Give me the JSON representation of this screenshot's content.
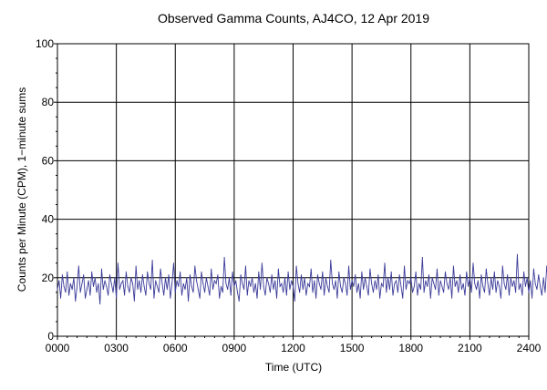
{
  "chart_data": {
    "type": "line",
    "title": "Observed Gamma Counts, AJ4CO, 12 Apr 2019",
    "xlabel": "Time (UTC)",
    "ylabel": "Counts per Minute (CPM), 1−minute sums",
    "x_unit": "minutes of day (UTC)",
    "xlim": [
      0,
      1440
    ],
    "ylim": [
      0,
      100
    ],
    "x_ticks": [
      {
        "value": 0,
        "label": "0000"
      },
      {
        "value": 180,
        "label": "0300"
      },
      {
        "value": 360,
        "label": "0600"
      },
      {
        "value": 540,
        "label": "0900"
      },
      {
        "value": 720,
        "label": "1200"
      },
      {
        "value": 900,
        "label": "1500"
      },
      {
        "value": 1080,
        "label": "1800"
      },
      {
        "value": 1260,
        "label": "2100"
      },
      {
        "value": 1440,
        "label": "2400"
      }
    ],
    "y_ticks": [
      {
        "value": 0,
        "label": "0"
      },
      {
        "value": 20,
        "label": "20"
      },
      {
        "value": 40,
        "label": "40"
      },
      {
        "value": 60,
        "label": "60"
      },
      {
        "value": 80,
        "label": "80"
      },
      {
        "value": 100,
        "label": "100"
      }
    ],
    "grid": true,
    "line_color": "#3b3b9a",
    "series": [
      {
        "name": "",
        "x_start": 0,
        "x_step": 5,
        "values": [
          16,
          19,
          13,
          21,
          17,
          15,
          22,
          14,
          18,
          16,
          20,
          12,
          17,
          24,
          15,
          18,
          21,
          13,
          16,
          19,
          14,
          22,
          17,
          20,
          15,
          18,
          11,
          23,
          16,
          19,
          17,
          14,
          21,
          18,
          15,
          20,
          13,
          25,
          16,
          18,
          19,
          14,
          22,
          17,
          15,
          20,
          18,
          12,
          24,
          16,
          19,
          15,
          21,
          17,
          14,
          22,
          18,
          16,
          26,
          13,
          19,
          17,
          15,
          23,
          18,
          14,
          20,
          16,
          21,
          13,
          18,
          25,
          15,
          19,
          17,
          22,
          14,
          18,
          16,
          20,
          12,
          21,
          17,
          15,
          24,
          19,
          16,
          13,
          22,
          18,
          15,
          20,
          17,
          14,
          23,
          16,
          19,
          18,
          21,
          13,
          17,
          15,
          27,
          18,
          16,
          20,
          14,
          22,
          17,
          19,
          15,
          12,
          21,
          18,
          16,
          24,
          14,
          19,
          17,
          20,
          15,
          18,
          13,
          22,
          16,
          25,
          17,
          14,
          20,
          18,
          15,
          21,
          16,
          19,
          13,
          23,
          17,
          18,
          15,
          20,
          14,
          22,
          16,
          19,
          17,
          12,
          24,
          18,
          15,
          21,
          16,
          20,
          14,
          18,
          17,
          23,
          15,
          19,
          13,
          21,
          18,
          16,
          22,
          14,
          20,
          17,
          15,
          26,
          18,
          16,
          19,
          13,
          22,
          17,
          15,
          20,
          18,
          14,
          24,
          16,
          19,
          17,
          21,
          15,
          18,
          13,
          22,
          16,
          20,
          17,
          14,
          23,
          18,
          15,
          19,
          16,
          21,
          13,
          18,
          17,
          25,
          15,
          20,
          16,
          22,
          14,
          18,
          19,
          15,
          21,
          17,
          13,
          24,
          16,
          19,
          18,
          20,
          15,
          17,
          22,
          14,
          18,
          16,
          27,
          15,
          19,
          17,
          21,
          13,
          20,
          18,
          16,
          23,
          14,
          19,
          17,
          15,
          22,
          18,
          16,
          20,
          13,
          24,
          17,
          19,
          15,
          21,
          16,
          18,
          14,
          22,
          17,
          20,
          15,
          25,
          18,
          16,
          19,
          13,
          21,
          17,
          15,
          23,
          18,
          14,
          20,
          16,
          22,
          15,
          19,
          17,
          13,
          24,
          18,
          16,
          21,
          14,
          20,
          17,
          19,
          15,
          28,
          16,
          18,
          14,
          22,
          17,
          20,
          15,
          19,
          13,
          23,
          18,
          16,
          21,
          17,
          14,
          20,
          15,
          24,
          18,
          19,
          16,
          22,
          13,
          17,
          15,
          21,
          18,
          20,
          14,
          26,
          16,
          19,
          17,
          15,
          22,
          18,
          13,
          20,
          16,
          24,
          17,
          19,
          15,
          21,
          14,
          18,
          16,
          23,
          17,
          20,
          15,
          29,
          18,
          16,
          21,
          19,
          14
        ]
      }
    ]
  }
}
